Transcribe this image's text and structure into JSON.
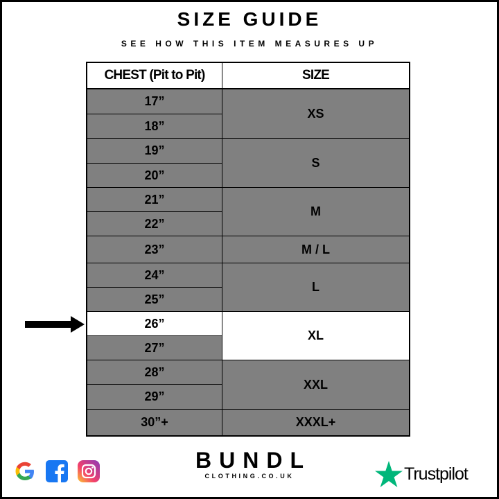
{
  "title": "SIZE GUIDE",
  "subtitle": "SEE HOW THIS ITEM MEASURES UP",
  "table": {
    "headers": [
      "CHEST (Pit to Pit)",
      "SIZE"
    ],
    "chest": [
      "17”",
      "18”",
      "19”",
      "20”",
      "21”",
      "22”",
      "23”",
      "24”",
      "25”",
      "26”",
      "27”",
      "28”",
      "29”",
      "30”+"
    ],
    "sizes": [
      "XS",
      "S",
      "M",
      "M / L",
      "L",
      "XL",
      "XXL",
      "XXXL+"
    ],
    "highlighted_chest": "26”",
    "highlighted_size": "XL"
  },
  "colors": {
    "row_bg": "#808080",
    "highlight": "#ffffff",
    "trustpilot_green": "#00b67a"
  },
  "footer": {
    "social_icons": [
      "google-icon",
      "facebook-icon",
      "instagram-icon"
    ],
    "brand": "BUNDL",
    "brand_sub": "CLOTHING.CO.UK",
    "trustpilot": "Trustpilot"
  }
}
